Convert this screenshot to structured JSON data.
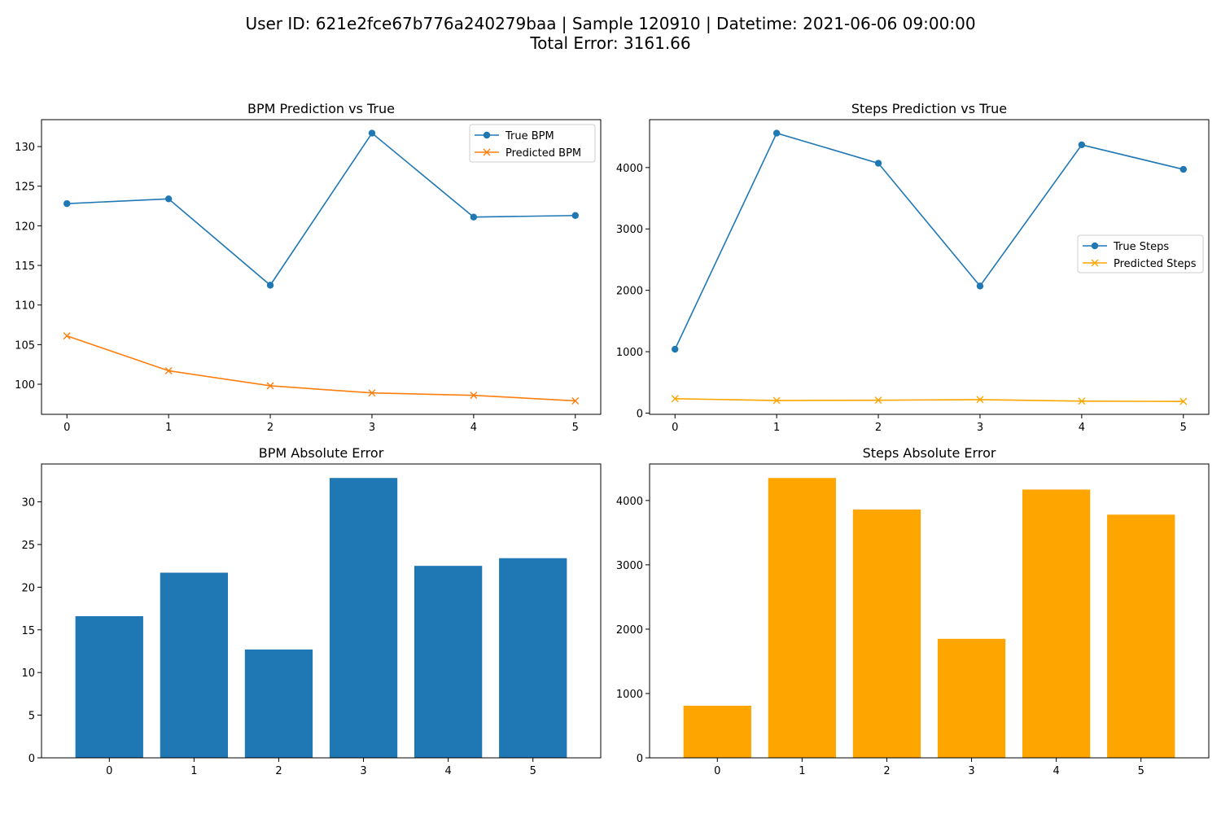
{
  "suptitle": {
    "line1": "User ID: 621e2fce67b776a240279baa | Sample 120910 | Datetime: 2021-06-06 09:00:00",
    "line2": "Total Error: 3161.66"
  },
  "colors": {
    "blue": "#1f77b4",
    "orange_line": "#ff7f0e",
    "orange_bar": "#ffa500"
  },
  "chart_data": [
    {
      "type": "line",
      "title": "BPM Prediction vs True",
      "x": [
        0,
        1,
        2,
        3,
        4,
        5
      ],
      "series": [
        {
          "name": "True BPM",
          "values": [
            122.8,
            123.4,
            112.5,
            131.7,
            121.1,
            121.3
          ],
          "color": "#1f77b4",
          "marker": "circle"
        },
        {
          "name": "Predicted BPM",
          "values": [
            106.1,
            101.7,
            99.8,
            98.9,
            98.6,
            97.9
          ],
          "color": "#ff7f0e",
          "marker": "x"
        }
      ],
      "xlim": [
        -0.25,
        5.25
      ],
      "ylim": [
        96.2,
        133.4
      ],
      "yticks": [
        100,
        105,
        110,
        115,
        120,
        125,
        130
      ],
      "xticks": [
        0,
        1,
        2,
        3,
        4,
        5
      ],
      "legend": "upper right",
      "grid": false
    },
    {
      "type": "line",
      "title": "Steps Prediction vs True",
      "x": [
        0,
        1,
        2,
        3,
        4,
        5
      ],
      "series": [
        {
          "name": "True Steps",
          "values": [
            1040,
            4560,
            4070,
            2070,
            4370,
            3970
          ],
          "color": "#1f77b4",
          "marker": "circle"
        },
        {
          "name": "Predicted Steps",
          "values": [
            235,
            205,
            210,
            220,
            195,
            190
          ],
          "color": "#ffa500",
          "marker": "x"
        }
      ],
      "xlim": [
        -0.25,
        5.25
      ],
      "ylim": [
        -20,
        4780
      ],
      "yticks": [
        0,
        1000,
        2000,
        3000,
        4000
      ],
      "xticks": [
        0,
        1,
        2,
        3,
        4,
        5
      ],
      "legend": "center right",
      "grid": false
    },
    {
      "type": "bar",
      "title": "BPM Absolute Error",
      "categories": [
        0,
        1,
        2,
        3,
        4,
        5
      ],
      "values": [
        16.6,
        21.7,
        12.7,
        32.8,
        22.5,
        23.4
      ],
      "color": "#1f77b4",
      "ylim": [
        0,
        34.44
      ],
      "yticks": [
        0,
        5,
        10,
        15,
        20,
        25,
        30
      ],
      "grid": false
    },
    {
      "type": "bar",
      "title": "Steps Absolute Error",
      "categories": [
        0,
        1,
        2,
        3,
        4,
        5
      ],
      "values": [
        810,
        4350,
        3860,
        1850,
        4170,
        3780
      ],
      "color": "#ffa500",
      "ylim": [
        0,
        4567.5
      ],
      "yticks": [
        0,
        1000,
        2000,
        3000,
        4000
      ],
      "grid": false
    }
  ]
}
